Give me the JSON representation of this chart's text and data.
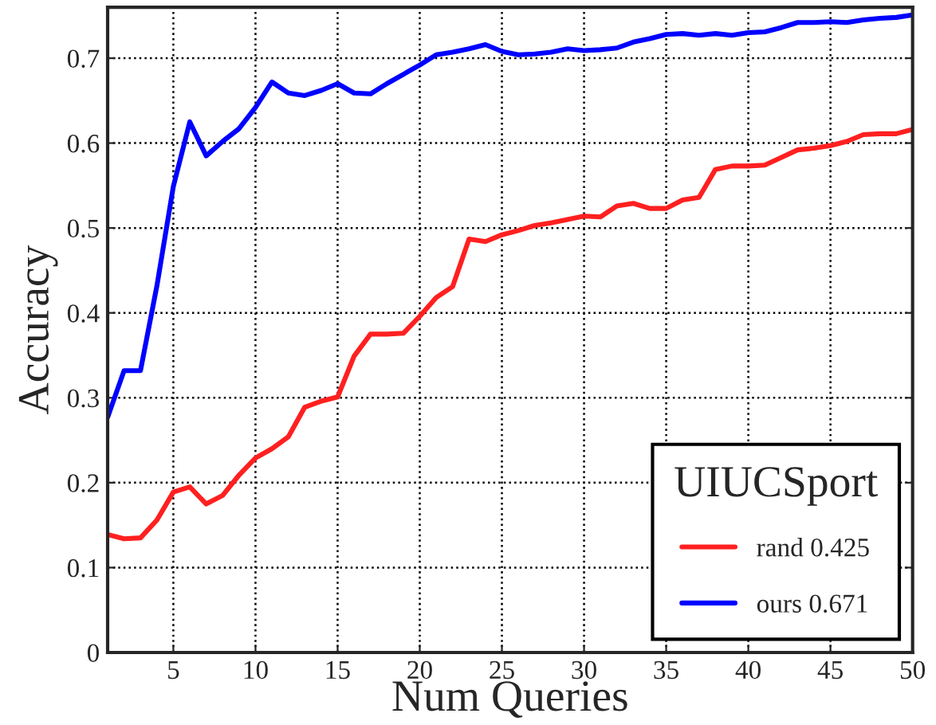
{
  "chart_data": {
    "type": "line",
    "xlabel": "Num Queries",
    "ylabel": "Accuracy",
    "legend_title": "UIUCSport",
    "x": [
      1,
      2,
      3,
      4,
      5,
      6,
      7,
      8,
      9,
      10,
      11,
      12,
      13,
      14,
      15,
      16,
      17,
      18,
      19,
      20,
      21,
      22,
      23,
      24,
      25,
      26,
      27,
      28,
      29,
      30,
      31,
      32,
      33,
      34,
      35,
      36,
      37,
      38,
      39,
      40,
      41,
      42,
      43,
      44,
      45,
      46,
      47,
      48,
      49,
      50
    ],
    "series": [
      {
        "name": "rand 0.425",
        "color": "#ff2020",
        "values": [
          0.139,
          0.134,
          0.135,
          0.156,
          0.189,
          0.195,
          0.175,
          0.185,
          0.209,
          0.229,
          0.24,
          0.254,
          0.289,
          0.296,
          0.301,
          0.349,
          0.375,
          0.375,
          0.376,
          0.396,
          0.418,
          0.431,
          0.487,
          0.484,
          0.492,
          0.497,
          0.503,
          0.506,
          0.51,
          0.514,
          0.513,
          0.526,
          0.529,
          0.523,
          0.523,
          0.533,
          0.536,
          0.569,
          0.573,
          0.573,
          0.574,
          0.583,
          0.592,
          0.594,
          0.597,
          0.602,
          0.61,
          0.611,
          0.611,
          0.616
        ]
      },
      {
        "name": "ours 0.671",
        "color": "#0000ff",
        "values": [
          0.277,
          0.332,
          0.332,
          0.432,
          0.549,
          0.625,
          0.585,
          0.602,
          0.617,
          0.642,
          0.672,
          0.659,
          0.656,
          0.662,
          0.67,
          0.659,
          0.658,
          0.67,
          0.681,
          0.692,
          0.704,
          0.707,
          0.711,
          0.716,
          0.708,
          0.704,
          0.705,
          0.707,
          0.711,
          0.709,
          0.71,
          0.712,
          0.719,
          0.723,
          0.728,
          0.729,
          0.727,
          0.729,
          0.727,
          0.73,
          0.731,
          0.736,
          0.742,
          0.742,
          0.743,
          0.742,
          0.745,
          0.747,
          0.748,
          0.751
        ]
      }
    ],
    "xlim": [
      1,
      50
    ],
    "ylim": [
      0,
      0.76
    ],
    "xticks": [
      5,
      10,
      15,
      20,
      25,
      30,
      35,
      40,
      45,
      50
    ],
    "yticks": [
      0,
      0.1,
      0.2,
      0.3,
      0.4,
      0.5,
      0.6,
      0.7
    ],
    "grid": true,
    "legend": "bottom right",
    "marker": "none",
    "line_style": "solid"
  }
}
